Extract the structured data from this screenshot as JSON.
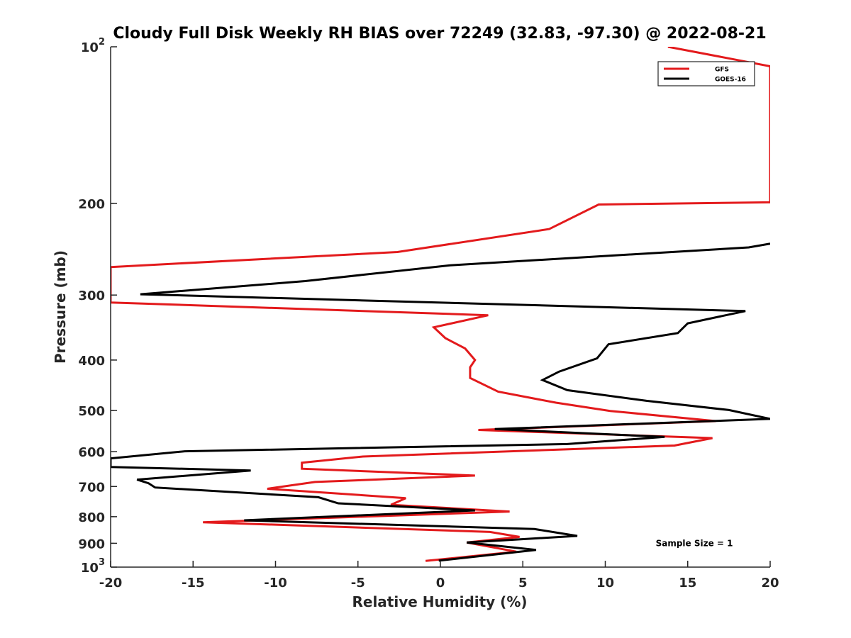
{
  "chart_data": {
    "type": "line",
    "title": "Cloudy Full Disk Weekly RH BIAS over 72249 (32.83, -97.30) @ 2022-08-21",
    "xlabel": "Relative Humidity (%)",
    "ylabel": "Pressure (mb)",
    "xlim": [
      -20,
      20
    ],
    "ylim": [
      100,
      1000
    ],
    "yscale": "log",
    "y_reversed": true,
    "grid": false,
    "legend_position": "top-right",
    "x_ticks": [
      {
        "value": -20,
        "label": "-20"
      },
      {
        "value": -15,
        "label": "-15"
      },
      {
        "value": -10,
        "label": "-10"
      },
      {
        "value": -5,
        "label": "-5"
      },
      {
        "value": 0,
        "label": "0"
      },
      {
        "value": 5,
        "label": "5"
      },
      {
        "value": 10,
        "label": "10"
      },
      {
        "value": 15,
        "label": "15"
      },
      {
        "value": 20,
        "label": "20"
      }
    ],
    "y_ticks": [
      {
        "value": 100,
        "base": "10",
        "exp": "2"
      },
      {
        "value": 200,
        "base": "200",
        "exp": ""
      },
      {
        "value": 300,
        "base": "300",
        "exp": ""
      },
      {
        "value": 400,
        "base": "400",
        "exp": ""
      },
      {
        "value": 500,
        "base": "500",
        "exp": ""
      },
      {
        "value": 600,
        "base": "600",
        "exp": ""
      },
      {
        "value": 700,
        "base": "700",
        "exp": ""
      },
      {
        "value": 800,
        "base": "800",
        "exp": ""
      },
      {
        "value": 900,
        "base": "900",
        "exp": ""
      },
      {
        "value": 1000,
        "base": "10",
        "exp": "3"
      }
    ],
    "series": [
      {
        "name": "GFS",
        "color": "#e31a1c",
        "points": [
          [
            13.8,
            100
          ],
          [
            20.0,
            109
          ],
          [
            20.0,
            199
          ],
          [
            9.6,
            201
          ],
          [
            6.6,
            224
          ],
          [
            -2.6,
            248
          ],
          [
            -20.0,
            265
          ],
          [
            -20.0,
            310
          ],
          [
            2.9,
            328
          ],
          [
            -0.4,
            346
          ],
          [
            0.3,
            363
          ],
          [
            1.5,
            380
          ],
          [
            2.1,
            400
          ],
          [
            1.8,
            413
          ],
          [
            1.8,
            433
          ],
          [
            3.5,
            460
          ],
          [
            7.0,
            483
          ],
          [
            10.3,
            501
          ],
          [
            16.7,
            524
          ],
          [
            2.3,
            545
          ],
          [
            16.5,
            565
          ],
          [
            14.2,
            584
          ],
          [
            -4.7,
            613
          ],
          [
            -8.4,
            630
          ],
          [
            -8.4,
            647
          ],
          [
            2.1,
            667
          ],
          [
            -7.6,
            686
          ],
          [
            -10.5,
            707
          ],
          [
            -2.1,
            737
          ],
          [
            -3.0,
            759
          ],
          [
            4.2,
            782
          ],
          [
            -14.4,
            820
          ],
          [
            3.0,
            856
          ],
          [
            4.8,
            875
          ],
          [
            1.6,
            897
          ],
          [
            4.6,
            934
          ],
          [
            -0.9,
            973
          ]
        ]
      },
      {
        "name": "GOES-16",
        "color": "#000000",
        "points": [
          [
            20.0,
            239
          ],
          [
            18.7,
            243
          ],
          [
            0.6,
            263
          ],
          [
            -8.2,
            282
          ],
          [
            -18.2,
            299
          ],
          [
            18.5,
            322
          ],
          [
            15.0,
            340
          ],
          [
            14.4,
            355
          ],
          [
            10.2,
            373
          ],
          [
            9.5,
            397
          ],
          [
            7.2,
            421
          ],
          [
            6.2,
            437
          ],
          [
            7.7,
            457
          ],
          [
            12.5,
            479
          ],
          [
            17.5,
            499
          ],
          [
            20.0,
            519
          ],
          [
            3.3,
            543
          ],
          [
            13.6,
            562
          ],
          [
            7.7,
            580
          ],
          [
            -15.5,
            599
          ],
          [
            -20.0,
            618
          ],
          [
            -20.0,
            642
          ],
          [
            -11.5,
            652
          ],
          [
            -18.4,
            679
          ],
          [
            -17.7,
            690
          ],
          [
            -17.3,
            703
          ],
          [
            -7.4,
            734
          ],
          [
            -6.2,
            754
          ],
          [
            2.1,
            778
          ],
          [
            -11.9,
            813
          ],
          [
            5.7,
            845
          ],
          [
            8.3,
            871
          ],
          [
            1.6,
            897
          ],
          [
            5.8,
            927
          ],
          [
            -0.1,
            972
          ]
        ]
      }
    ],
    "annotations": [
      {
        "text": "Sample Size = 1",
        "x": 15.4,
        "y": 900
      }
    ]
  }
}
